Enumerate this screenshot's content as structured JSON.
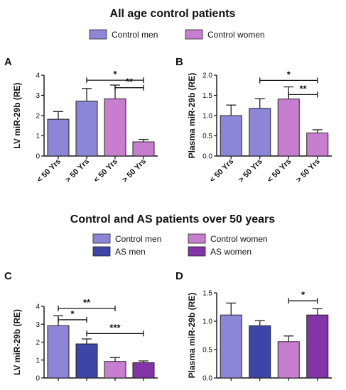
{
  "sections": [
    {
      "title": "All age control patients"
    },
    {
      "title": "Control and AS patients over 50 years"
    }
  ],
  "legends": [
    {
      "items": [
        {
          "label": "Control men",
          "color": "#8d86d8"
        },
        {
          "label": "Control women",
          "color": "#c77ed0"
        }
      ]
    },
    {
      "items": [
        {
          "label": "Control men",
          "color": "#8d86d8"
        },
        {
          "label": "Control women",
          "color": "#c77ed0"
        },
        {
          "label": "AS men",
          "color": "#3e45a8"
        },
        {
          "label": "AS women",
          "color": "#8334a6"
        }
      ]
    }
  ],
  "chart_data": [
    {
      "panel": "A",
      "type": "bar",
      "ylabel": "LV miR-29b (RE)",
      "ylim": [
        0,
        4
      ],
      "yticks": [
        "0",
        "1",
        "2",
        "3",
        "4"
      ],
      "categories": [
        "< 50 Yrs",
        "> 50 Yrs",
        "< 50 Yrs",
        "> 50 Yrs"
      ],
      "values": [
        1.82,
        2.72,
        2.83,
        0.7
      ],
      "errors": [
        0.38,
        0.62,
        0.68,
        0.12
      ],
      "colors": [
        "#8d86d8",
        "#8d86d8",
        "#c77ed0",
        "#c77ed0"
      ],
      "significance": [
        {
          "from": 1,
          "to": 3,
          "y": 3.75,
          "label": "*"
        },
        {
          "from": 2,
          "to": 3,
          "y": 3.38,
          "label": "**"
        }
      ]
    },
    {
      "panel": "B",
      "type": "bar",
      "ylabel": "Plasma miR-29b (RE)",
      "ylim": [
        0,
        2
      ],
      "yticks": [
        "0.0",
        "0.5",
        "1.0",
        "1.5",
        "2.0"
      ],
      "categories": [
        "< 50 Yrs",
        "> 50 Yrs",
        "< 50 Yrs",
        "> 50 Yrs"
      ],
      "values": [
        1.0,
        1.18,
        1.41,
        0.57
      ],
      "errors": [
        0.26,
        0.24,
        0.3,
        0.08
      ],
      "colors": [
        "#8d86d8",
        "#8d86d8",
        "#c77ed0",
        "#c77ed0"
      ],
      "significance": [
        {
          "from": 1,
          "to": 3,
          "y": 1.87,
          "label": "*"
        },
        {
          "from": 2,
          "to": 3,
          "y": 1.52,
          "label": "**"
        }
      ]
    },
    {
      "panel": "C",
      "type": "bar",
      "ylabel": "LV miR-29b (RE)",
      "ylim": [
        0,
        4
      ],
      "yticks": [
        "0",
        "1",
        "2",
        "3",
        "4"
      ],
      "categories": [
        "",
        "",
        "",
        ""
      ],
      "values": [
        2.92,
        1.9,
        0.92,
        0.85
      ],
      "errors": [
        0.55,
        0.28,
        0.22,
        0.1
      ],
      "colors": [
        "#8d86d8",
        "#3e45a8",
        "#c77ed0",
        "#8334a6"
      ],
      "significance": [
        {
          "from": 0,
          "to": 2,
          "y": 3.88,
          "label": "**"
        },
        {
          "from": 0,
          "to": 1,
          "y": 3.25,
          "label": "*"
        },
        {
          "from": 1,
          "to": 3,
          "y": 2.48,
          "label": "***"
        }
      ]
    },
    {
      "panel": "D",
      "type": "bar",
      "ylabel": "Plasma miR-29b (RE)",
      "ylim": [
        0,
        1.5
      ],
      "yticks": [
        "0.0",
        "0.5",
        "1.0",
        "1.5"
      ],
      "categories": [
        "",
        "",
        "",
        ""
      ],
      "values": [
        1.11,
        0.92,
        0.64,
        1.11
      ],
      "errors": [
        0.21,
        0.09,
        0.1,
        0.11
      ],
      "colors": [
        "#8d86d8",
        "#3e45a8",
        "#c77ed0",
        "#8334a6"
      ],
      "significance": [
        {
          "from": 2,
          "to": 3,
          "y": 1.36,
          "label": "*"
        }
      ]
    }
  ]
}
